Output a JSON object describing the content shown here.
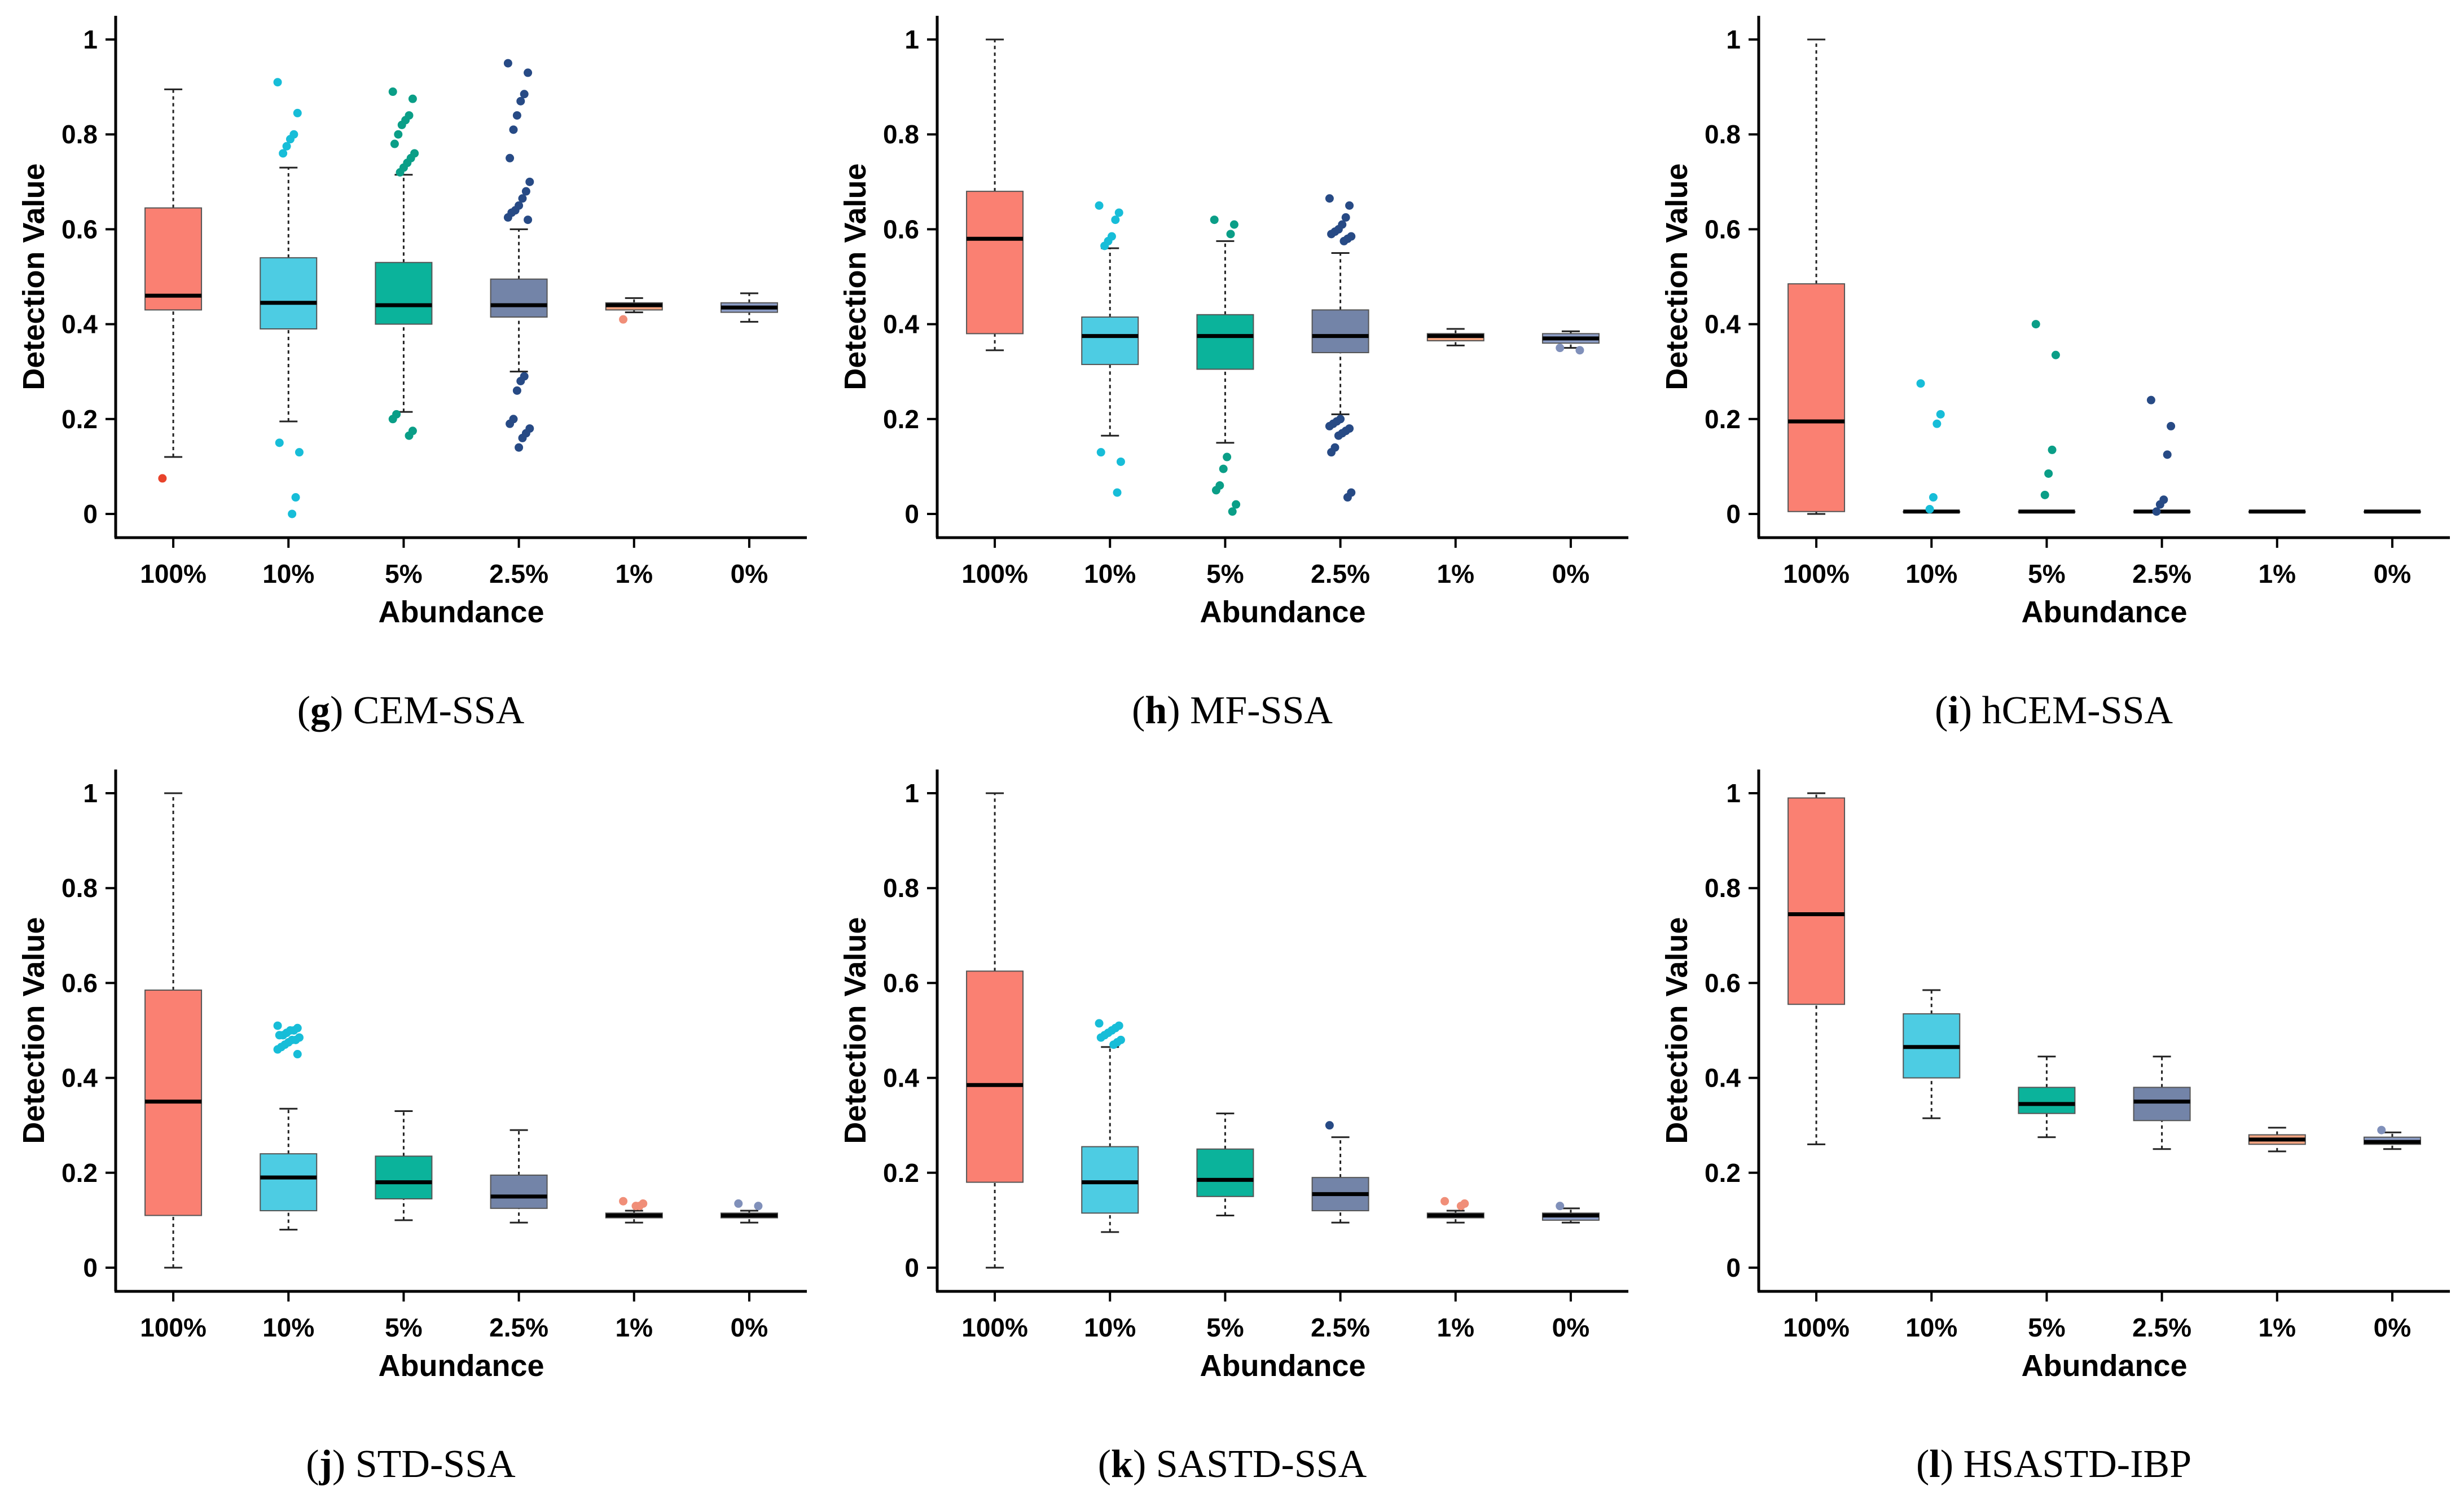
{
  "figure": {
    "y_axis_title": "Detection Value",
    "x_axis_title": "Abundance"
  },
  "chart_data": [
    {
      "type": "boxplot",
      "letter": "g",
      "title": "CEM-SSA",
      "xlabel": "Abundance",
      "ylabel": "Detection Value",
      "ylim": [
        -0.05,
        1.05
      ],
      "yticks": [
        0,
        0.2,
        0.4,
        0.6,
        0.8,
        1
      ],
      "ytick_labels": [
        "0",
        "0.2",
        "0.4",
        "0.6",
        "0.8",
        "1"
      ],
      "categories": [
        "100%",
        "10%",
        "5%",
        "2.5%",
        "1%",
        "0%"
      ],
      "colors": [
        "#FA8072",
        "#4DCCE3",
        "#0BB39B",
        "#7384A8",
        "#F4A582",
        "#8C9DC6"
      ],
      "point_colors": [
        "#E8432B",
        "#17BDD8",
        "#0A9E87",
        "#274A85",
        "#F08E78",
        "#8090BA"
      ],
      "boxes": [
        {
          "q1": 0.43,
          "median": 0.46,
          "q3": 0.645,
          "wlo": 0.12,
          "whi": 0.895,
          "outliers": [
            0.075
          ]
        },
        {
          "q1": 0.39,
          "median": 0.445,
          "q3": 0.54,
          "wlo": 0.195,
          "whi": 0.73,
          "outliers": [
            0.91,
            0.845,
            0.8,
            0.79,
            0.775,
            0.76,
            0.15,
            0.13,
            0.035,
            0.0
          ]
        },
        {
          "q1": 0.4,
          "median": 0.44,
          "q3": 0.53,
          "wlo": 0.215,
          "whi": 0.715,
          "outliers": [
            0.89,
            0.875,
            0.84,
            0.83,
            0.82,
            0.8,
            0.78,
            0.76,
            0.75,
            0.74,
            0.73,
            0.72,
            0.21,
            0.2,
            0.175,
            0.165
          ]
        },
        {
          "q1": 0.415,
          "median": 0.44,
          "q3": 0.495,
          "wlo": 0.3,
          "whi": 0.6,
          "outliers": [
            0.95,
            0.93,
            0.885,
            0.87,
            0.84,
            0.81,
            0.75,
            0.7,
            0.68,
            0.665,
            0.65,
            0.64,
            0.635,
            0.625,
            0.62,
            0.29,
            0.28,
            0.26,
            0.2,
            0.19,
            0.18,
            0.17,
            0.16,
            0.14
          ]
        },
        {
          "q1": 0.43,
          "median": 0.44,
          "q3": 0.445,
          "wlo": 0.425,
          "whi": 0.455,
          "outliers": [
            0.41
          ]
        },
        {
          "q1": 0.425,
          "median": 0.435,
          "q3": 0.445,
          "wlo": 0.405,
          "whi": 0.465,
          "outliers": []
        }
      ]
    },
    {
      "type": "boxplot",
      "letter": "h",
      "title": "MF-SSA",
      "xlabel": "Abundance",
      "ylabel": "Detection Value",
      "ylim": [
        -0.05,
        1.05
      ],
      "yticks": [
        0,
        0.2,
        0.4,
        0.6,
        0.8,
        1
      ],
      "ytick_labels": [
        "0",
        "0.2",
        "0.4",
        "0.6",
        "0.8",
        "1"
      ],
      "categories": [
        "100%",
        "10%",
        "5%",
        "2.5%",
        "1%",
        "0%"
      ],
      "colors": [
        "#FA8072",
        "#4DCCE3",
        "#0BB39B",
        "#7384A8",
        "#F4A582",
        "#8C9DC6"
      ],
      "point_colors": [
        "#E8432B",
        "#17BDD8",
        "#0A9E87",
        "#274A85",
        "#F08E78",
        "#8090BA"
      ],
      "boxes": [
        {
          "q1": 0.38,
          "median": 0.58,
          "q3": 0.68,
          "wlo": 0.345,
          "whi": 1.0,
          "outliers": []
        },
        {
          "q1": 0.315,
          "median": 0.375,
          "q3": 0.415,
          "wlo": 0.165,
          "whi": 0.56,
          "outliers": [
            0.65,
            0.635,
            0.62,
            0.585,
            0.575,
            0.565,
            0.13,
            0.11,
            0.045
          ]
        },
        {
          "q1": 0.305,
          "median": 0.375,
          "q3": 0.42,
          "wlo": 0.15,
          "whi": 0.575,
          "outliers": [
            0.62,
            0.61,
            0.59,
            0.12,
            0.095,
            0.06,
            0.05,
            0.02,
            0.005
          ]
        },
        {
          "q1": 0.34,
          "median": 0.375,
          "q3": 0.43,
          "wlo": 0.21,
          "whi": 0.55,
          "outliers": [
            0.665,
            0.65,
            0.625,
            0.61,
            0.6,
            0.595,
            0.59,
            0.585,
            0.58,
            0.575,
            0.2,
            0.195,
            0.19,
            0.185,
            0.18,
            0.175,
            0.17,
            0.165,
            0.14,
            0.13,
            0.045,
            0.035
          ]
        },
        {
          "q1": 0.365,
          "median": 0.375,
          "q3": 0.38,
          "wlo": 0.355,
          "whi": 0.39,
          "outliers": []
        },
        {
          "q1": 0.36,
          "median": 0.37,
          "q3": 0.38,
          "wlo": 0.35,
          "whi": 0.385,
          "outliers": [
            0.35,
            0.345
          ]
        }
      ]
    },
    {
      "type": "boxplot",
      "letter": "i",
      "title": "hCEM-SSA",
      "xlabel": "Abundance",
      "ylabel": "Detection Value",
      "ylim": [
        -0.05,
        1.05
      ],
      "yticks": [
        0,
        0.2,
        0.4,
        0.6,
        0.8,
        1
      ],
      "ytick_labels": [
        "0",
        "0.2",
        "0.4",
        "0.6",
        "0.8",
        "1"
      ],
      "categories": [
        "100%",
        "10%",
        "5%",
        "2.5%",
        "1%",
        "0%"
      ],
      "colors": [
        "#FA8072",
        "#4DCCE3",
        "#0BB39B",
        "#7384A8",
        "#F4A582",
        "#8C9DC6"
      ],
      "point_colors": [
        "#E8432B",
        "#17BDD8",
        "#0A9E87",
        "#274A85",
        "#F08E78",
        "#8090BA"
      ],
      "boxes": [
        {
          "q1": 0.005,
          "median": 0.195,
          "q3": 0.485,
          "wlo": 0.0,
          "whi": 1.0,
          "outliers": []
        },
        {
          "q1": 0.005,
          "median": 0.005,
          "q3": 0.005,
          "wlo": 0.005,
          "whi": 0.005,
          "outliers": [
            0.275,
            0.21,
            0.19,
            0.035,
            0.01
          ]
        },
        {
          "q1": 0.005,
          "median": 0.005,
          "q3": 0.005,
          "wlo": 0.005,
          "whi": 0.005,
          "outliers": [
            0.4,
            0.335,
            0.135,
            0.085,
            0.04
          ]
        },
        {
          "q1": 0.005,
          "median": 0.005,
          "q3": 0.005,
          "wlo": 0.005,
          "whi": 0.005,
          "outliers": [
            0.24,
            0.185,
            0.125,
            0.03,
            0.02,
            0.005
          ]
        },
        {
          "q1": 0.005,
          "median": 0.005,
          "q3": 0.005,
          "wlo": 0.005,
          "whi": 0.005,
          "outliers": []
        },
        {
          "q1": 0.005,
          "median": 0.005,
          "q3": 0.005,
          "wlo": 0.005,
          "whi": 0.005,
          "outliers": []
        }
      ]
    },
    {
      "type": "boxplot",
      "letter": "j",
      "title": "STD-SSA",
      "xlabel": "Abundance",
      "ylabel": "Detection Value",
      "ylim": [
        -0.05,
        1.05
      ],
      "yticks": [
        0,
        0.2,
        0.4,
        0.6,
        0.8,
        1
      ],
      "ytick_labels": [
        "0",
        "0.2",
        "0.4",
        "0.6",
        "0.8",
        "1"
      ],
      "categories": [
        "100%",
        "10%",
        "5%",
        "2.5%",
        "1%",
        "0%"
      ],
      "colors": [
        "#FA8072",
        "#4DCCE3",
        "#0BB39B",
        "#7384A8",
        "#F4A582",
        "#8C9DC6"
      ],
      "point_colors": [
        "#E8432B",
        "#17BDD8",
        "#0A9E87",
        "#274A85",
        "#F08E78",
        "#8090BA"
      ],
      "boxes": [
        {
          "q1": 0.11,
          "median": 0.35,
          "q3": 0.585,
          "wlo": 0.0,
          "whi": 1.0,
          "outliers": []
        },
        {
          "q1": 0.12,
          "median": 0.19,
          "q3": 0.24,
          "wlo": 0.08,
          "whi": 0.335,
          "outliers": [
            0.51,
            0.505,
            0.5,
            0.5,
            0.495,
            0.49,
            0.49,
            0.485,
            0.48,
            0.48,
            0.475,
            0.47,
            0.465,
            0.46,
            0.45
          ]
        },
        {
          "q1": 0.145,
          "median": 0.18,
          "q3": 0.235,
          "wlo": 0.1,
          "whi": 0.33,
          "outliers": []
        },
        {
          "q1": 0.125,
          "median": 0.15,
          "q3": 0.195,
          "wlo": 0.095,
          "whi": 0.29,
          "outliers": []
        },
        {
          "q1": 0.105,
          "median": 0.11,
          "q3": 0.115,
          "wlo": 0.095,
          "whi": 0.12,
          "outliers": [
            0.14,
            0.135,
            0.13,
            0.13
          ]
        },
        {
          "q1": 0.105,
          "median": 0.11,
          "q3": 0.115,
          "wlo": 0.095,
          "whi": 0.12,
          "outliers": [
            0.135,
            0.13
          ]
        }
      ]
    },
    {
      "type": "boxplot",
      "letter": "k",
      "title": "SASTD-SSA",
      "xlabel": "Abundance",
      "ylabel": "Detection Value",
      "ylim": [
        -0.05,
        1.05
      ],
      "yticks": [
        0,
        0.2,
        0.4,
        0.6,
        0.8,
        1
      ],
      "ytick_labels": [
        "0",
        "0.2",
        "0.4",
        "0.6",
        "0.8",
        "1"
      ],
      "categories": [
        "100%",
        "10%",
        "5%",
        "2.5%",
        "1%",
        "0%"
      ],
      "colors": [
        "#FA8072",
        "#4DCCE3",
        "#0BB39B",
        "#7384A8",
        "#F4A582",
        "#8C9DC6"
      ],
      "point_colors": [
        "#E8432B",
        "#17BDD8",
        "#0A9E87",
        "#274A85",
        "#F08E78",
        "#8090BA"
      ],
      "boxes": [
        {
          "q1": 0.18,
          "median": 0.385,
          "q3": 0.625,
          "wlo": 0.0,
          "whi": 1.0,
          "outliers": []
        },
        {
          "q1": 0.115,
          "median": 0.18,
          "q3": 0.255,
          "wlo": 0.075,
          "whi": 0.465,
          "outliers": [
            0.515,
            0.51,
            0.505,
            0.5,
            0.495,
            0.49,
            0.485,
            0.48,
            0.475,
            0.47
          ]
        },
        {
          "q1": 0.15,
          "median": 0.185,
          "q3": 0.25,
          "wlo": 0.11,
          "whi": 0.325,
          "outliers": []
        },
        {
          "q1": 0.12,
          "median": 0.155,
          "q3": 0.19,
          "wlo": 0.095,
          "whi": 0.275,
          "outliers": [
            0.3
          ]
        },
        {
          "q1": 0.105,
          "median": 0.11,
          "q3": 0.115,
          "wlo": 0.095,
          "whi": 0.12,
          "outliers": [
            0.14,
            0.135,
            0.13
          ]
        },
        {
          "q1": 0.1,
          "median": 0.11,
          "q3": 0.115,
          "wlo": 0.095,
          "whi": 0.125,
          "outliers": [
            0.13
          ]
        }
      ]
    },
    {
      "type": "boxplot",
      "letter": "l",
      "title": "HSASTD-IBP",
      "xlabel": "Abundance",
      "ylabel": "Detection Value",
      "ylim": [
        -0.05,
        1.05
      ],
      "yticks": [
        0,
        0.2,
        0.4,
        0.6,
        0.8,
        1
      ],
      "ytick_labels": [
        "0",
        "0.2",
        "0.4",
        "0.6",
        "0.8",
        "1"
      ],
      "categories": [
        "100%",
        "10%",
        "5%",
        "2.5%",
        "1%",
        "0%"
      ],
      "colors": [
        "#FA8072",
        "#4DCCE3",
        "#0BB39B",
        "#7384A8",
        "#F4A582",
        "#8C9DC6"
      ],
      "point_colors": [
        "#E8432B",
        "#17BDD8",
        "#0A9E87",
        "#274A85",
        "#F08E78",
        "#8090BA"
      ],
      "boxes": [
        {
          "q1": 0.555,
          "median": 0.745,
          "q3": 0.99,
          "wlo": 0.26,
          "whi": 1.0,
          "outliers": []
        },
        {
          "q1": 0.4,
          "median": 0.465,
          "q3": 0.535,
          "wlo": 0.315,
          "whi": 0.585,
          "outliers": []
        },
        {
          "q1": 0.325,
          "median": 0.345,
          "q3": 0.38,
          "wlo": 0.275,
          "whi": 0.445,
          "outliers": []
        },
        {
          "q1": 0.31,
          "median": 0.35,
          "q3": 0.38,
          "wlo": 0.25,
          "whi": 0.445,
          "outliers": []
        },
        {
          "q1": 0.26,
          "median": 0.27,
          "q3": 0.28,
          "wlo": 0.245,
          "whi": 0.295,
          "outliers": []
        },
        {
          "q1": 0.26,
          "median": 0.265,
          "q3": 0.275,
          "wlo": 0.25,
          "whi": 0.285,
          "outliers": [
            0.29
          ]
        }
      ]
    }
  ]
}
